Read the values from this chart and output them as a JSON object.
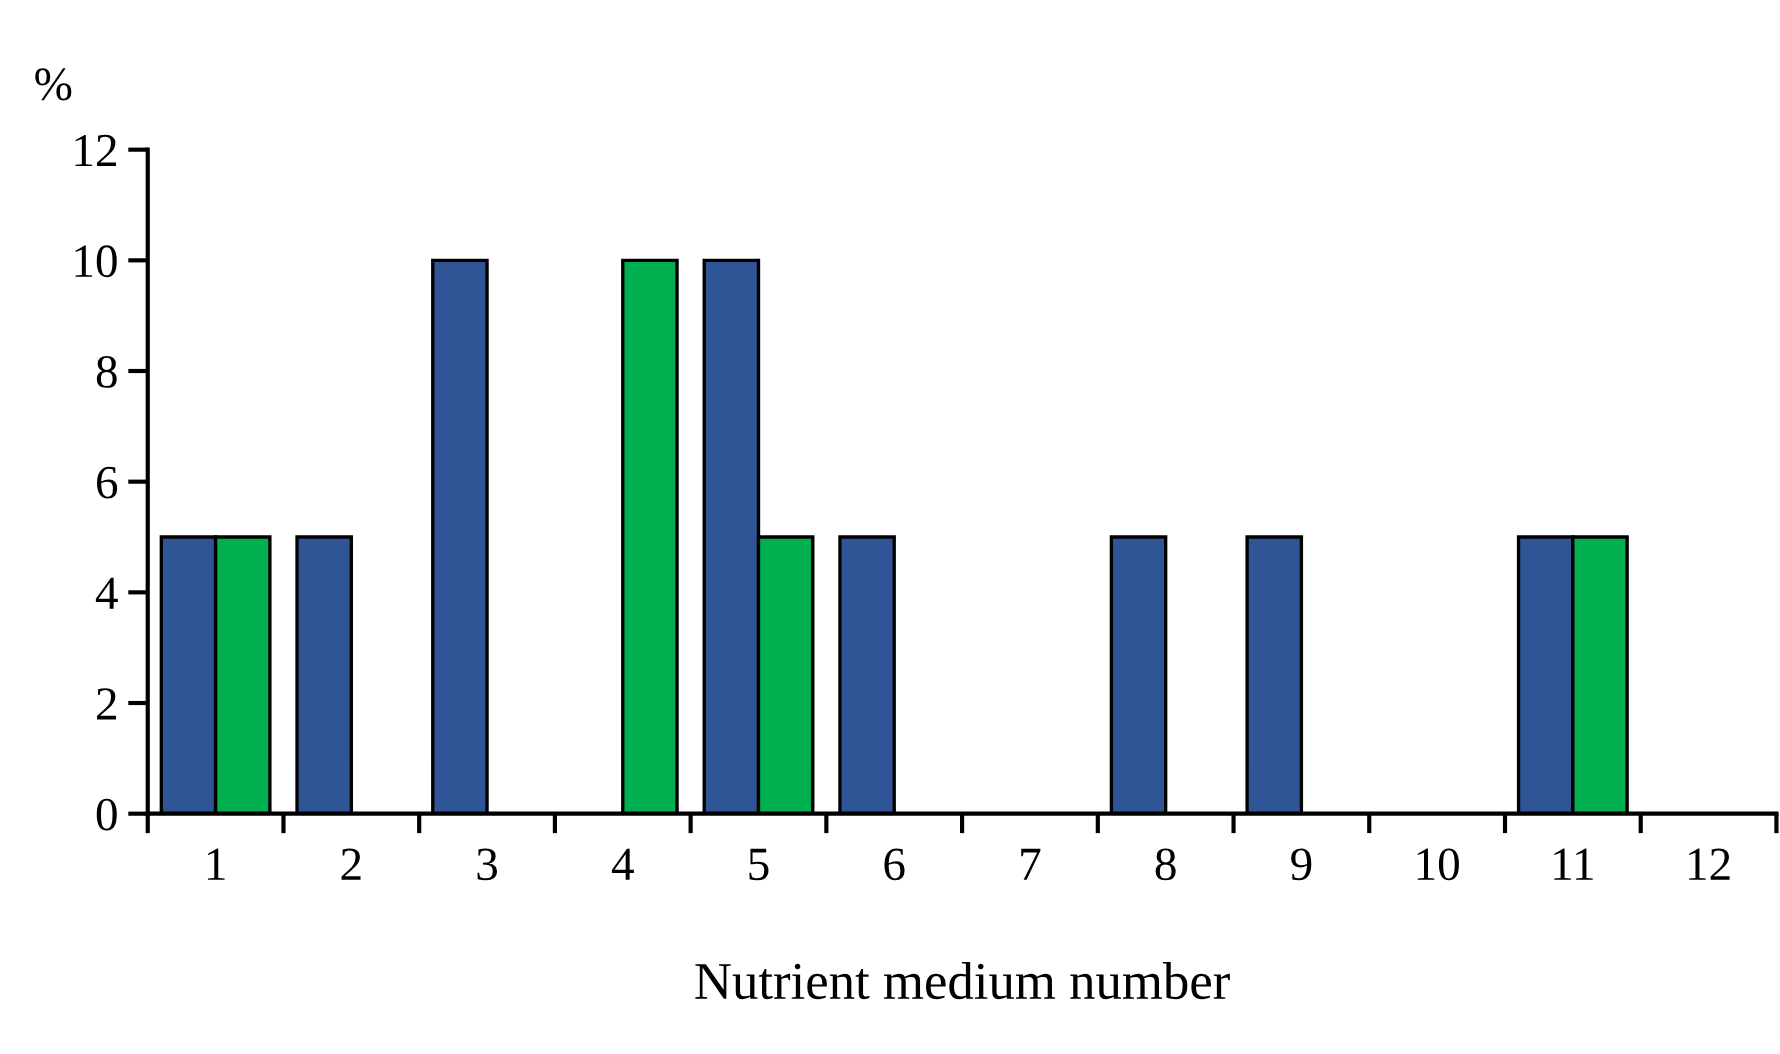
{
  "chart_data": {
    "type": "bar",
    "xlabel": "Nutrient medium number",
    "ylabel": "%",
    "categories": [
      "1",
      "2",
      "3",
      "4",
      "5",
      "6",
      "7",
      "8",
      "9",
      "10",
      "11",
      "12"
    ],
    "series": [
      {
        "color": "#2f5597",
        "values": [
          5,
          5,
          10,
          0,
          10,
          5,
          0,
          5,
          5,
          0,
          5,
          0
        ]
      },
      {
        "color": "#00b050",
        "values": [
          5,
          0,
          0,
          10,
          5,
          0,
          0,
          0,
          0,
          0,
          5,
          0
        ]
      }
    ],
    "ylim": [
      0,
      12
    ],
    "yticks": [
      0,
      2,
      4,
      6,
      8,
      10,
      12
    ],
    "grid": false,
    "legend": false
  }
}
